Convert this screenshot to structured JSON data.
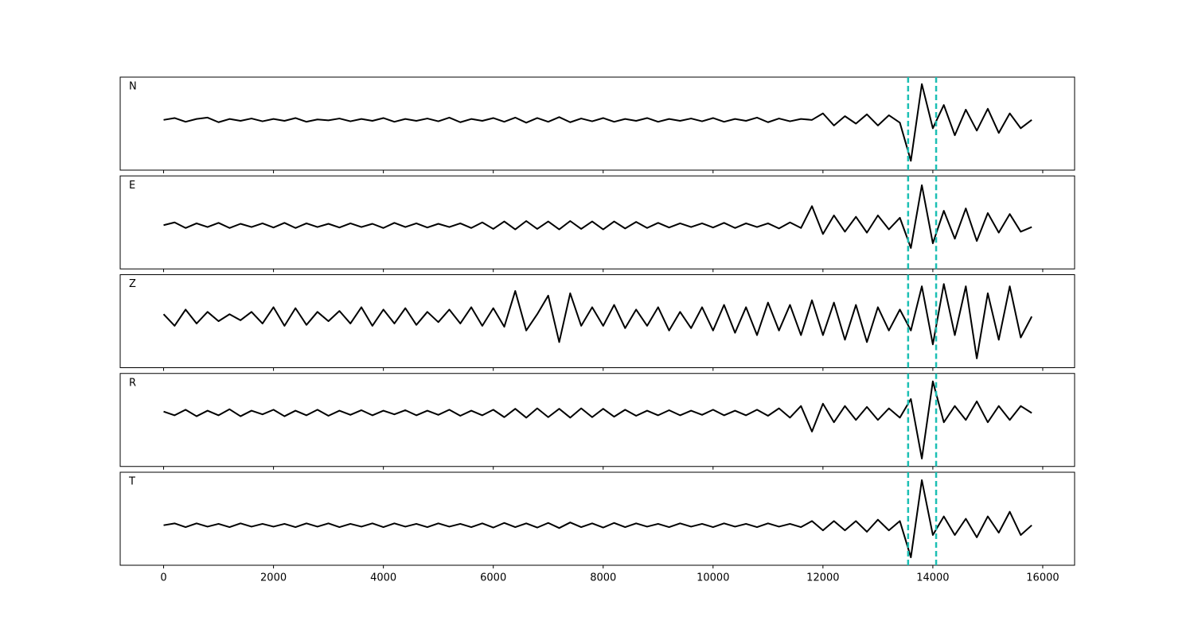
{
  "chart_data": {
    "type": "line",
    "subplots": true,
    "grid": false,
    "x": [
      0,
      200,
      400,
      600,
      800,
      1000,
      1200,
      1400,
      1600,
      1800,
      2000,
      2200,
      2400,
      2600,
      2800,
      3000,
      3200,
      3400,
      3600,
      3800,
      4000,
      4200,
      4400,
      4600,
      4800,
      5000,
      5200,
      5400,
      5600,
      5800,
      6000,
      6200,
      6400,
      6600,
      6800,
      7000,
      7200,
      7400,
      7600,
      7800,
      8000,
      8200,
      8400,
      8600,
      8800,
      9000,
      9200,
      9400,
      9600,
      9800,
      10000,
      10200,
      10400,
      10600,
      10800,
      11000,
      11200,
      11400,
      11600,
      11800,
      12000,
      12200,
      12400,
      12600,
      12800,
      13000,
      13200,
      13400,
      13600,
      13800,
      14000,
      14200,
      14400,
      14600,
      14800,
      15000,
      15200,
      15400,
      15600,
      15800
    ],
    "xlim": [
      -790,
      16580
    ],
    "xticks": [
      0,
      2000,
      4000,
      6000,
      8000,
      10000,
      12000,
      14000,
      16000
    ],
    "ylim": [
      -1,
      1
    ],
    "vlines": {
      "values": [
        13550,
        14060
      ],
      "color": "#1cbfb4",
      "dashed": true
    },
    "series": [
      {
        "name": "N",
        "color": "#000000",
        "values": [
          0.08,
          0.12,
          0.04,
          0.1,
          0.13,
          0.03,
          0.1,
          0.06,
          0.11,
          0.05,
          0.1,
          0.06,
          0.12,
          0.04,
          0.09,
          0.07,
          0.11,
          0.05,
          0.1,
          0.06,
          0.12,
          0.04,
          0.1,
          0.06,
          0.11,
          0.05,
          0.13,
          0.03,
          0.1,
          0.06,
          0.12,
          0.04,
          0.13,
          0.02,
          0.12,
          0.04,
          0.14,
          0.03,
          0.11,
          0.05,
          0.12,
          0.04,
          0.1,
          0.06,
          0.12,
          0.04,
          0.1,
          0.06,
          0.11,
          0.05,
          0.12,
          0.04,
          0.1,
          0.06,
          0.13,
          0.03,
          0.11,
          0.05,
          0.1,
          0.08,
          0.22,
          -0.04,
          0.16,
          0.0,
          0.2,
          -0.04,
          0.18,
          0.02,
          -0.8,
          0.85,
          -0.1,
          0.4,
          -0.25,
          0.3,
          -0.15,
          0.32,
          -0.2,
          0.22,
          -0.1,
          0.08
        ]
      },
      {
        "name": "E",
        "color": "#000000",
        "values": [
          -0.06,
          0.0,
          -0.12,
          -0.02,
          -0.1,
          -0.01,
          -0.12,
          -0.03,
          -0.1,
          -0.02,
          -0.11,
          -0.01,
          -0.12,
          -0.02,
          -0.1,
          -0.03,
          -0.11,
          -0.02,
          -0.1,
          -0.03,
          -0.12,
          -0.01,
          -0.1,
          -0.02,
          -0.11,
          -0.03,
          -0.1,
          -0.02,
          -0.12,
          0.0,
          -0.14,
          0.02,
          -0.15,
          0.03,
          -0.14,
          0.02,
          -0.15,
          0.03,
          -0.14,
          0.02,
          -0.15,
          0.02,
          -0.13,
          0.01,
          -0.12,
          -0.01,
          -0.11,
          -0.02,
          -0.1,
          -0.02,
          -0.11,
          -0.01,
          -0.12,
          -0.02,
          -0.1,
          -0.02,
          -0.13,
          0.0,
          -0.12,
          0.35,
          -0.25,
          0.15,
          -0.2,
          0.12,
          -0.22,
          0.15,
          -0.15,
          0.1,
          -0.55,
          0.8,
          -0.45,
          0.25,
          -0.35,
          0.3,
          -0.4,
          0.2,
          -0.22,
          0.18,
          -0.2,
          -0.1
        ]
      },
      {
        "name": "Z",
        "color": "#000000",
        "values": [
          0.15,
          -0.1,
          0.25,
          -0.05,
          0.2,
          0.0,
          0.15,
          0.02,
          0.2,
          -0.05,
          0.3,
          -0.1,
          0.28,
          -0.08,
          0.2,
          0.0,
          0.22,
          -0.05,
          0.3,
          -0.1,
          0.25,
          -0.05,
          0.28,
          -0.08,
          0.2,
          -0.02,
          0.25,
          -0.05,
          0.3,
          -0.1,
          0.28,
          -0.12,
          0.65,
          -0.2,
          0.15,
          0.55,
          -0.45,
          0.6,
          -0.1,
          0.3,
          -0.1,
          0.35,
          -0.15,
          0.25,
          -0.1,
          0.3,
          -0.2,
          0.2,
          -0.15,
          0.3,
          -0.2,
          0.35,
          -0.25,
          0.3,
          -0.3,
          0.4,
          -0.2,
          0.35,
          -0.3,
          0.45,
          -0.3,
          0.4,
          -0.4,
          0.35,
          -0.45,
          0.3,
          -0.2,
          0.25,
          -0.2,
          0.75,
          -0.5,
          0.8,
          -0.3,
          0.75,
          -0.8,
          0.6,
          -0.4,
          0.75,
          -0.35,
          0.1
        ]
      },
      {
        "name": "R",
        "color": "#000000",
        "values": [
          0.18,
          0.1,
          0.22,
          0.08,
          0.2,
          0.1,
          0.23,
          0.08,
          0.2,
          0.12,
          0.22,
          0.08,
          0.2,
          0.1,
          0.22,
          0.09,
          0.2,
          0.11,
          0.21,
          0.1,
          0.2,
          0.12,
          0.21,
          0.1,
          0.2,
          0.11,
          0.22,
          0.09,
          0.2,
          0.1,
          0.22,
          0.06,
          0.24,
          0.05,
          0.25,
          0.06,
          0.24,
          0.05,
          0.25,
          0.06,
          0.24,
          0.07,
          0.22,
          0.09,
          0.2,
          0.1,
          0.21,
          0.1,
          0.2,
          0.11,
          0.22,
          0.1,
          0.2,
          0.1,
          0.22,
          0.09,
          0.25,
          0.05,
          0.3,
          -0.25,
          0.35,
          -0.05,
          0.3,
          0.0,
          0.28,
          0.0,
          0.25,
          0.05,
          0.45,
          -0.83,
          0.83,
          -0.05,
          0.3,
          0.0,
          0.4,
          -0.05,
          0.3,
          0.0,
          0.3,
          0.15
        ]
      },
      {
        "name": "T",
        "color": "#000000",
        "values": [
          -0.14,
          -0.1,
          -0.18,
          -0.1,
          -0.17,
          -0.11,
          -0.18,
          -0.1,
          -0.17,
          -0.11,
          -0.17,
          -0.11,
          -0.18,
          -0.1,
          -0.17,
          -0.1,
          -0.18,
          -0.11,
          -0.17,
          -0.1,
          -0.18,
          -0.1,
          -0.17,
          -0.11,
          -0.18,
          -0.1,
          -0.17,
          -0.11,
          -0.18,
          -0.1,
          -0.19,
          -0.09,
          -0.18,
          -0.1,
          -0.19,
          -0.09,
          -0.2,
          -0.08,
          -0.18,
          -0.1,
          -0.19,
          -0.09,
          -0.18,
          -0.1,
          -0.17,
          -0.11,
          -0.18,
          -0.1,
          -0.17,
          -0.11,
          -0.18,
          -0.1,
          -0.17,
          -0.11,
          -0.18,
          -0.1,
          -0.17,
          -0.11,
          -0.18,
          -0.05,
          -0.25,
          -0.05,
          -0.25,
          -0.05,
          -0.28,
          -0.02,
          -0.25,
          -0.05,
          -0.83,
          0.83,
          -0.35,
          0.05,
          -0.35,
          0.0,
          -0.4,
          0.05,
          -0.3,
          0.15,
          -0.35,
          -0.14
        ]
      }
    ]
  }
}
